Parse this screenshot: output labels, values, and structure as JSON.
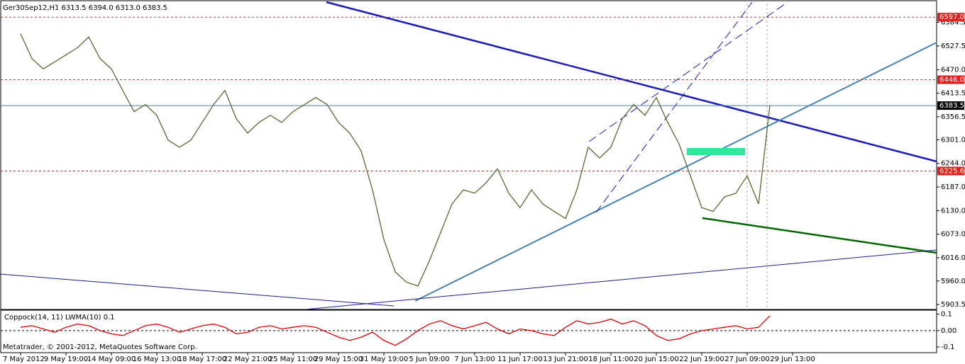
{
  "chart_data": [
    {
      "type": "line",
      "title": "Ger30Sep12,H1  6313.5 6394.0 6313.0 6383.5",
      "color": "#556b2f",
      "categories": [
        "7 May 2012",
        null,
        null,
        null,
        "9 May 19:00",
        null,
        null,
        null,
        "14 May 09:00",
        null,
        null,
        null,
        "16 May 13:00",
        null,
        null,
        null,
        "18 May 17:00",
        null,
        null,
        null,
        "22 May 21:00",
        null,
        null,
        null,
        "25 May 11:00",
        null,
        null,
        null,
        "29 May 15:00",
        null,
        null,
        null,
        "31 May 19:00",
        null,
        null,
        null,
        "5 Jun 09:00",
        null,
        null,
        null,
        "7 Jun 13:00",
        null,
        null,
        null,
        "11 Jun 17:00",
        null,
        null,
        null,
        "13 Jun 21:00",
        null,
        null,
        null,
        "18 Jun 11:00",
        null,
        null,
        null,
        "20 Jun 15:00",
        null,
        null,
        null,
        "22 Jun 19:00",
        null,
        null,
        null,
        "27 Jun 09:00",
        null,
        null,
        null,
        "29 Jun 13:00"
      ],
      "values": [
        6557,
        6497,
        6472,
        6489,
        6506,
        6523,
        6549,
        6497,
        6472,
        6420,
        6369,
        6386,
        6360,
        6300,
        6283,
        6300,
        6343,
        6386,
        6420,
        6352,
        6317,
        6343,
        6360,
        6343,
        6369,
        6386,
        6403,
        6386,
        6343,
        6317,
        6274,
        6180,
        6060,
        5982,
        5957,
        5948,
        6008,
        6077,
        6146,
        6180,
        6172,
        6197,
        6231,
        6172,
        6137,
        6180,
        6146,
        6128,
        6111,
        6180,
        6283,
        6257,
        6283,
        6352,
        6386,
        6360,
        6403,
        6343,
        6291,
        6214,
        6137,
        6128,
        6163,
        6172,
        6214,
        6146,
        6383.5,
        null,
        null
      ],
      "ylim": [
        5893,
        6635
      ],
      "yticks": [
        5903.5,
        {
          "value": 5960,
          "label": "5960.0"
        },
        {
          "value": 6016,
          "label": "6016.0"
        },
        {
          "value": 6073,
          "label": "6073.0"
        },
        {
          "value": 6130,
          "label": "6130.0"
        },
        {
          "value": 6187,
          "label": "6187.0"
        },
        {
          "value": 6244,
          "label": "6244.0"
        },
        {
          "value": 6301,
          "label": "6301.0"
        },
        6356.5,
        6413.5,
        {
          "value": 6470,
          "label": "6470.0"
        },
        6527.5,
        6584.5
      ],
      "levels": [
        {
          "value": 6597,
          "label": "6597.0",
          "color": "#e31c1c"
        },
        {
          "value": 6446,
          "label": "6446.0",
          "color": "#e31c1c"
        },
        {
          "value": 6383.5,
          "label": "6383.5",
          "color": "#000000"
        },
        {
          "value": 6225.6,
          "label": "6225.6",
          "color": "#e31c1c"
        }
      ]
    },
    {
      "type": "line",
      "title": "Coppock(14, 11) LWMA(10) 0.1",
      "color": "#e00000",
      "values": [
        0.02,
        0.03,
        0.01,
        -0.01,
        0.02,
        0.04,
        0.03,
        0,
        -0.02,
        -0.03,
        0,
        0.03,
        0.04,
        0.02,
        -0.01,
        0.01,
        0.03,
        0.04,
        0.02,
        -0.02,
        -0.01,
        0.02,
        0.03,
        0.01,
        0.02,
        0.03,
        0.02,
        -0.01,
        -0.04,
        -0.06,
        -0.04,
        -0.01,
        -0.06,
        -0.09,
        -0.05,
        0,
        0.04,
        0.06,
        0.03,
        0.01,
        0.03,
        0.05,
        0.01,
        -0.02,
        0.01,
        0,
        -0.02,
        -0.03,
        0.02,
        0.06,
        0.04,
        0.05,
        0.07,
        0.04,
        0.06,
        0.03,
        -0.03,
        -0.06,
        -0.05,
        -0.02,
        0,
        0.01,
        0.02,
        0.03,
        0.01,
        0.02,
        0.09,
        null,
        null
      ],
      "ylim": [
        -0.13,
        0.12
      ],
      "yticks": [
        0.1,
        {
          "value": 0,
          "label": "0.00"
        },
        -0.1
      ]
    }
  ],
  "footer": "Metatrader, © 2001-2012, MetaQuotes Software Corp."
}
